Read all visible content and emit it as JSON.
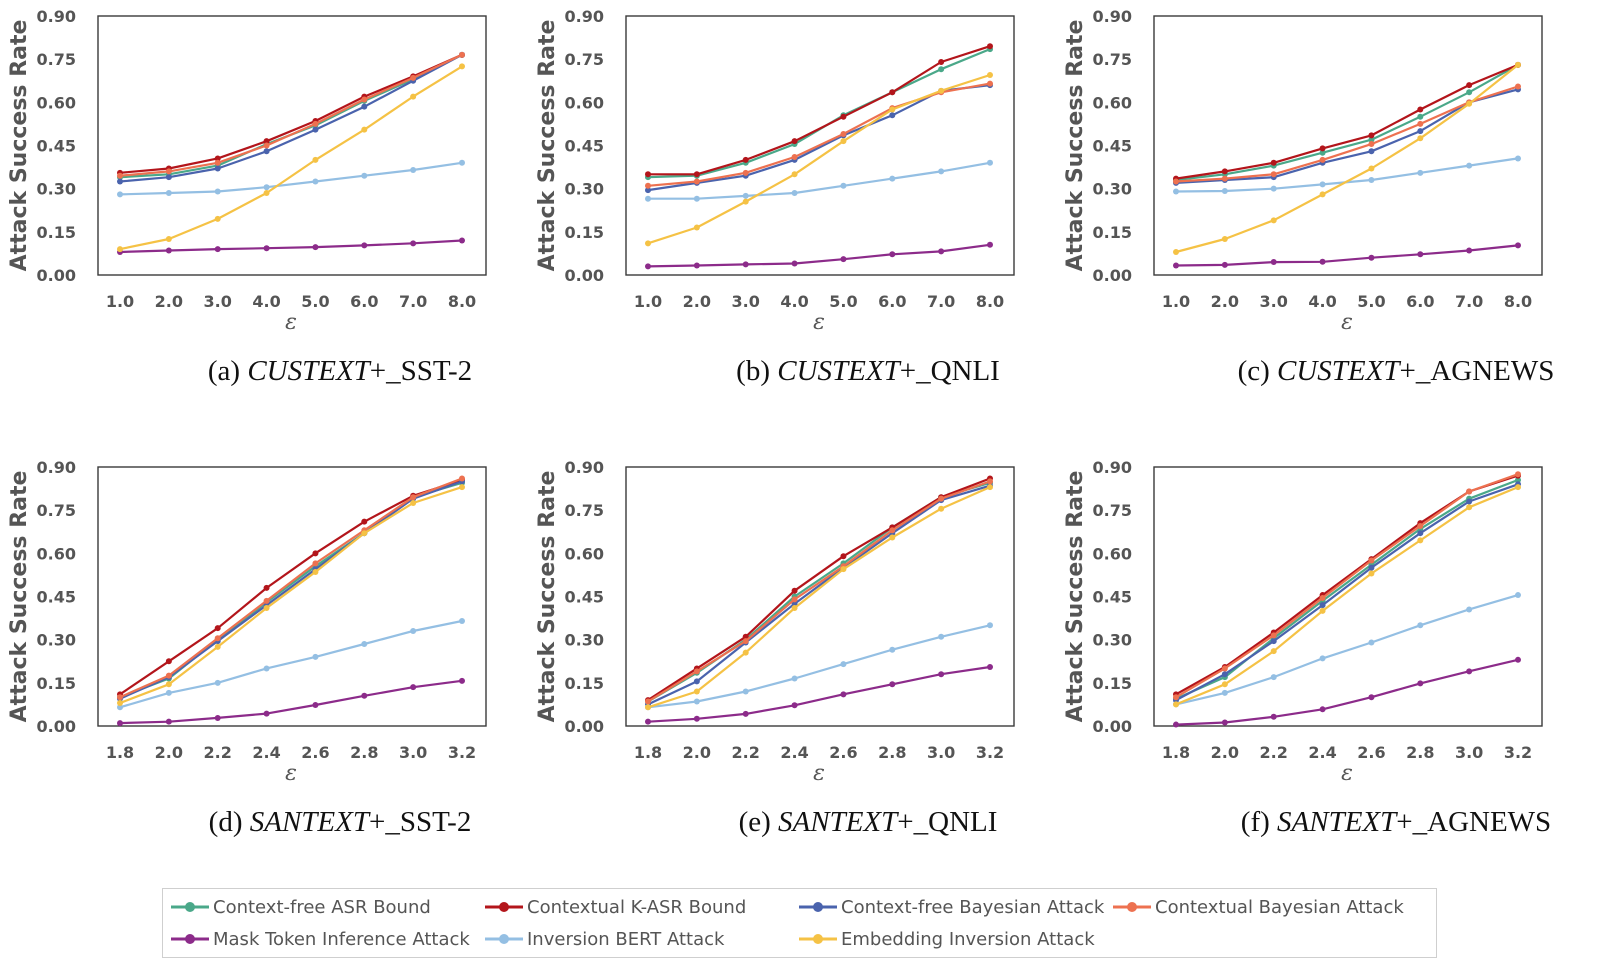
{
  "figure": {
    "y_axis_label": "Attack Success Rate",
    "x_axis_label": "ε"
  },
  "series_styles": [
    {
      "name": "Context-free ASR Bound",
      "color": "#4aa889"
    },
    {
      "name": "Contextual K-ASR Bound",
      "color": "#b3151b"
    },
    {
      "name": "Context-free Bayesian Attack",
      "color": "#4a63ad"
    },
    {
      "name": "Contextual Bayesian Attack",
      "color": "#ed7150"
    },
    {
      "name": "Mask Token Inference Attack",
      "color": "#8c2b8a"
    },
    {
      "name": "Inversion BERT Attack",
      "color": "#94bfe3"
    },
    {
      "name": "Embedding Inversion Attack",
      "color": "#f5c245"
    }
  ],
  "captions": [
    {
      "prefix": "(a) ",
      "italic": "CUSTEXT",
      "suffix": "+_SST-2"
    },
    {
      "prefix": "(b) ",
      "italic": "CUSTEXT",
      "suffix": "+_QNLI"
    },
    {
      "prefix": "(c) ",
      "italic": "CUSTEXT",
      "suffix": "+_AGNEWS"
    },
    {
      "prefix": "(d) ",
      "italic": "SANTEXT",
      "suffix": "+_SST-2"
    },
    {
      "prefix": "(e) ",
      "italic": "SANTEXT",
      "suffix": "+_QNLI"
    },
    {
      "prefix": "(f) ",
      "italic": "SANTEXT",
      "suffix": "+_AGNEWS"
    }
  ],
  "chart_data": [
    {
      "type": "line",
      "x": [
        "1.0",
        "2.0",
        "3.0",
        "4.0",
        "5.0",
        "6.0",
        "7.0",
        "8.0"
      ],
      "ylim": [
        0,
        0.9
      ],
      "yticks": [
        "0.00",
        "0.15",
        "0.30",
        "0.45",
        "0.60",
        "0.75",
        "0.90"
      ],
      "series": [
        {
          "name": "Context-free ASR Bound",
          "values": [
            0.34,
            0.35,
            0.38,
            0.455,
            0.52,
            0.605,
            0.68,
            0.765
          ]
        },
        {
          "name": "Contextual K-ASR Bound",
          "values": [
            0.355,
            0.37,
            0.405,
            0.465,
            0.535,
            0.62,
            0.69,
            0.765
          ]
        },
        {
          "name": "Context-free Bayesian Attack",
          "values": [
            0.325,
            0.34,
            0.37,
            0.43,
            0.505,
            0.585,
            0.675,
            0.765
          ]
        },
        {
          "name": "Contextual Bayesian Attack",
          "values": [
            0.345,
            0.36,
            0.39,
            0.45,
            0.525,
            0.61,
            0.685,
            0.765
          ]
        },
        {
          "name": "Mask Token Inference Attack",
          "values": [
            0.08,
            0.085,
            0.09,
            0.093,
            0.097,
            0.103,
            0.11,
            0.12
          ]
        },
        {
          "name": "Inversion BERT Attack",
          "values": [
            0.28,
            0.285,
            0.29,
            0.305,
            0.325,
            0.345,
            0.365,
            0.39
          ]
        },
        {
          "name": "Embedding Inversion Attack",
          "values": [
            0.09,
            0.125,
            0.195,
            0.285,
            0.4,
            0.505,
            0.62,
            0.725
          ]
        }
      ]
    },
    {
      "type": "line",
      "x": [
        "1.0",
        "2.0",
        "3.0",
        "4.0",
        "5.0",
        "6.0",
        "7.0",
        "8.0"
      ],
      "ylim": [
        0,
        0.9
      ],
      "yticks": [
        "0.00",
        "0.15",
        "0.30",
        "0.45",
        "0.60",
        "0.75",
        "0.90"
      ],
      "series": [
        {
          "name": "Context-free ASR Bound",
          "values": [
            0.34,
            0.345,
            0.39,
            0.455,
            0.555,
            0.635,
            0.715,
            0.785
          ]
        },
        {
          "name": "Contextual K-ASR Bound",
          "values": [
            0.35,
            0.35,
            0.4,
            0.465,
            0.55,
            0.635,
            0.74,
            0.795
          ]
        },
        {
          "name": "Context-free Bayesian Attack",
          "values": [
            0.295,
            0.32,
            0.345,
            0.4,
            0.485,
            0.555,
            0.64,
            0.66
          ]
        },
        {
          "name": "Contextual Bayesian Attack",
          "values": [
            0.31,
            0.325,
            0.355,
            0.41,
            0.49,
            0.58,
            0.635,
            0.665
          ]
        },
        {
          "name": "Mask Token Inference Attack",
          "values": [
            0.03,
            0.033,
            0.037,
            0.04,
            0.055,
            0.072,
            0.082,
            0.105
          ]
        },
        {
          "name": "Inversion BERT Attack",
          "values": [
            0.265,
            0.265,
            0.275,
            0.285,
            0.31,
            0.335,
            0.36,
            0.39
          ]
        },
        {
          "name": "Embedding Inversion Attack",
          "values": [
            0.11,
            0.165,
            0.255,
            0.35,
            0.465,
            0.575,
            0.64,
            0.695
          ]
        }
      ]
    },
    {
      "type": "line",
      "x": [
        "1.0",
        "2.0",
        "3.0",
        "4.0",
        "5.0",
        "6.0",
        "7.0",
        "8.0"
      ],
      "ylim": [
        0,
        0.9
      ],
      "yticks": [
        "0.00",
        "0.15",
        "0.30",
        "0.45",
        "0.60",
        "0.75",
        "0.90"
      ],
      "series": [
        {
          "name": "Context-free ASR Bound",
          "values": [
            0.33,
            0.35,
            0.38,
            0.425,
            0.47,
            0.55,
            0.635,
            0.73
          ]
        },
        {
          "name": "Contextual K-ASR Bound",
          "values": [
            0.335,
            0.36,
            0.39,
            0.44,
            0.485,
            0.575,
            0.66,
            0.73
          ]
        },
        {
          "name": "Context-free Bayesian Attack",
          "values": [
            0.32,
            0.33,
            0.34,
            0.39,
            0.43,
            0.5,
            0.6,
            0.645
          ]
        },
        {
          "name": "Contextual Bayesian Attack",
          "values": [
            0.325,
            0.335,
            0.35,
            0.4,
            0.455,
            0.525,
            0.6,
            0.655
          ]
        },
        {
          "name": "Mask Token Inference Attack",
          "values": [
            0.033,
            0.035,
            0.045,
            0.046,
            0.06,
            0.072,
            0.085,
            0.103
          ]
        },
        {
          "name": "Inversion BERT Attack",
          "values": [
            0.29,
            0.292,
            0.3,
            0.315,
            0.33,
            0.355,
            0.38,
            0.405
          ]
        },
        {
          "name": "Embedding Inversion Attack",
          "values": [
            0.08,
            0.125,
            0.19,
            0.28,
            0.37,
            0.475,
            0.595,
            0.73
          ]
        }
      ]
    },
    {
      "type": "line",
      "x": [
        "1.8",
        "2.0",
        "2.2",
        "2.4",
        "2.6",
        "2.8",
        "3.0",
        "3.2"
      ],
      "ylim": [
        0,
        0.9
      ],
      "yticks": [
        "0.00",
        "0.15",
        "0.30",
        "0.45",
        "0.60",
        "0.75",
        "0.90"
      ],
      "series": [
        {
          "name": "Context-free ASR Bound",
          "values": [
            0.1,
            0.165,
            0.3,
            0.43,
            0.555,
            0.67,
            0.795,
            0.845
          ]
        },
        {
          "name": "Contextual K-ASR Bound",
          "values": [
            0.11,
            0.225,
            0.34,
            0.48,
            0.6,
            0.71,
            0.8,
            0.855
          ]
        },
        {
          "name": "Context-free Bayesian Attack",
          "values": [
            0.095,
            0.17,
            0.295,
            0.42,
            0.545,
            0.67,
            0.79,
            0.85
          ]
        },
        {
          "name": "Contextual Bayesian Attack",
          "values": [
            0.1,
            0.175,
            0.305,
            0.435,
            0.565,
            0.68,
            0.795,
            0.86
          ]
        },
        {
          "name": "Mask Token Inference Attack",
          "values": [
            0.01,
            0.015,
            0.028,
            0.043,
            0.073,
            0.105,
            0.135,
            0.157
          ]
        },
        {
          "name": "Inversion BERT Attack",
          "values": [
            0.065,
            0.115,
            0.15,
            0.2,
            0.24,
            0.285,
            0.33,
            0.365
          ]
        },
        {
          "name": "Embedding Inversion Attack",
          "values": [
            0.08,
            0.145,
            0.275,
            0.41,
            0.535,
            0.67,
            0.775,
            0.83
          ]
        }
      ]
    },
    {
      "type": "line",
      "x": [
        "1.8",
        "2.0",
        "2.2",
        "2.4",
        "2.6",
        "2.8",
        "3.0",
        "3.2"
      ],
      "ylim": [
        0,
        0.9
      ],
      "yticks": [
        "0.00",
        "0.15",
        "0.30",
        "0.45",
        "0.60",
        "0.75",
        "0.90"
      ],
      "series": [
        {
          "name": "Context-free ASR Bound",
          "values": [
            0.085,
            0.185,
            0.3,
            0.45,
            0.565,
            0.69,
            0.795,
            0.845
          ]
        },
        {
          "name": "Contextual K-ASR Bound",
          "values": [
            0.09,
            0.2,
            0.31,
            0.47,
            0.59,
            0.69,
            0.795,
            0.86
          ]
        },
        {
          "name": "Context-free Bayesian Attack",
          "values": [
            0.075,
            0.155,
            0.29,
            0.425,
            0.55,
            0.67,
            0.785,
            0.835
          ]
        },
        {
          "name": "Contextual Bayesian Attack",
          "values": [
            0.085,
            0.19,
            0.295,
            0.44,
            0.555,
            0.68,
            0.79,
            0.85
          ]
        },
        {
          "name": "Mask Token Inference Attack",
          "values": [
            0.015,
            0.025,
            0.042,
            0.072,
            0.11,
            0.145,
            0.18,
            0.205
          ]
        },
        {
          "name": "Inversion BERT Attack",
          "values": [
            0.065,
            0.085,
            0.12,
            0.165,
            0.215,
            0.265,
            0.31,
            0.35
          ]
        },
        {
          "name": "Embedding Inversion Attack",
          "values": [
            0.065,
            0.12,
            0.255,
            0.41,
            0.545,
            0.655,
            0.755,
            0.83
          ]
        }
      ]
    },
    {
      "type": "line",
      "x": [
        "1.8",
        "2.0",
        "2.2",
        "2.4",
        "2.6",
        "2.8",
        "3.0",
        "3.2"
      ],
      "ylim": [
        0,
        0.9
      ],
      "yticks": [
        "0.00",
        "0.15",
        "0.30",
        "0.45",
        "0.60",
        "0.75",
        "0.90"
      ],
      "series": [
        {
          "name": "Context-free ASR Bound",
          "values": [
            0.095,
            0.17,
            0.305,
            0.435,
            0.56,
            0.685,
            0.79,
            0.855
          ]
        },
        {
          "name": "Contextual K-ASR Bound",
          "values": [
            0.11,
            0.205,
            0.325,
            0.455,
            0.58,
            0.705,
            0.815,
            0.87
          ]
        },
        {
          "name": "Context-free Bayesian Attack",
          "values": [
            0.09,
            0.18,
            0.295,
            0.42,
            0.55,
            0.67,
            0.78,
            0.84
          ]
        },
        {
          "name": "Contextual Bayesian Attack",
          "values": [
            0.1,
            0.2,
            0.315,
            0.445,
            0.575,
            0.695,
            0.815,
            0.875
          ]
        },
        {
          "name": "Mask Token Inference Attack",
          "values": [
            0.005,
            0.012,
            0.032,
            0.058,
            0.1,
            0.148,
            0.19,
            0.23
          ]
        },
        {
          "name": "Inversion BERT Attack",
          "values": [
            0.075,
            0.115,
            0.17,
            0.235,
            0.29,
            0.35,
            0.405,
            0.455
          ]
        },
        {
          "name": "Embedding Inversion Attack",
          "values": [
            0.075,
            0.145,
            0.26,
            0.4,
            0.53,
            0.645,
            0.76,
            0.83
          ]
        }
      ]
    }
  ],
  "legend": {
    "items": [
      "Context-free ASR Bound",
      "Contextual K-ASR Bound",
      "Context-free Bayesian Attack",
      "Contextual Bayesian Attack",
      "Mask Token Inference Attack",
      "Inversion BERT Attack",
      "Embedding Inversion Attack"
    ]
  }
}
